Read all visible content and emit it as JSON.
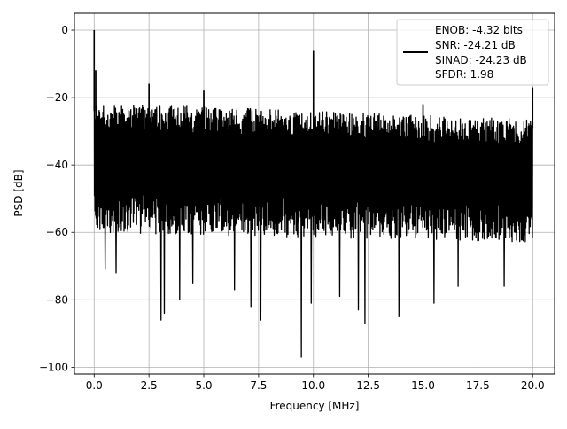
{
  "chart_data": {
    "type": "line",
    "xlabel": "Frequency [MHz]",
    "ylabel": "PSD [dB]",
    "xlim": [
      -0.9,
      21.0
    ],
    "ylim": [
      -102,
      5
    ],
    "xticks": [
      0.0,
      2.5,
      5.0,
      7.5,
      10.0,
      12.5,
      15.0,
      17.5,
      20.0
    ],
    "xtick_labels": [
      "0.0",
      "2.5",
      "5.0",
      "7.5",
      "10.0",
      "12.5",
      "15.0",
      "17.5",
      "20.0"
    ],
    "yticks": [
      0,
      -20,
      -40,
      -60,
      -80,
      -100
    ],
    "ytick_labels": [
      "0",
      "−20",
      "−40",
      "−60",
      "−80",
      "−100"
    ],
    "grid": true,
    "legend": {
      "placement": "top-right",
      "entries": [
        "ENOB: -4.32 bits",
        "SNR: -24.21 dB",
        "SINAD: -24.23 dB",
        "SFDR: 1.98"
      ]
    },
    "series": [
      {
        "color": "#000000",
        "x_range": [
          0.0,
          20.0
        ],
        "noise_envelope": {
          "upper_start": -20,
          "upper_end": -25,
          "lower_start": -64,
          "lower_end": -67
        },
        "peaks": [
          {
            "x": 0.0,
            "y": 0
          },
          {
            "x": 0.07,
            "y": -12
          },
          {
            "x": 2.5,
            "y": -16
          },
          {
            "x": 5.0,
            "y": -18
          },
          {
            "x": 10.0,
            "y": -6
          },
          {
            "x": 15.0,
            "y": -22
          },
          {
            "x": 20.0,
            "y": -17
          }
        ],
        "dips": [
          {
            "x": 0.5,
            "y": -71
          },
          {
            "x": 1.0,
            "y": -72
          },
          {
            "x": 3.05,
            "y": -86
          },
          {
            "x": 3.2,
            "y": -84
          },
          {
            "x": 3.9,
            "y": -80
          },
          {
            "x": 4.5,
            "y": -75
          },
          {
            "x": 6.4,
            "y": -77
          },
          {
            "x": 7.15,
            "y": -82
          },
          {
            "x": 7.6,
            "y": -86
          },
          {
            "x": 9.45,
            "y": -97
          },
          {
            "x": 9.9,
            "y": -81
          },
          {
            "x": 11.2,
            "y": -79
          },
          {
            "x": 12.05,
            "y": -83
          },
          {
            "x": 12.35,
            "y": -87
          },
          {
            "x": 13.9,
            "y": -85
          },
          {
            "x": 15.5,
            "y": -81
          },
          {
            "x": 16.6,
            "y": -76
          },
          {
            "x": 18.7,
            "y": -76
          }
        ]
      }
    ]
  }
}
